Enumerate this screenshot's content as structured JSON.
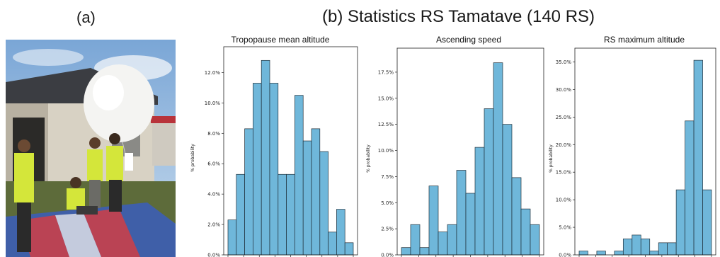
{
  "panels": {
    "a_label": "(a)",
    "b_label": "(b) Statistics RS Tamatave (140 RS)"
  },
  "photo": {
    "description_icon": "radiosonde-launch-photo-icon"
  },
  "colors": {
    "bar_fill": "#6fb7da",
    "bar_stroke": "#1f2f3a",
    "sky": "#8fb4d8",
    "tarp_red": "#c8404a",
    "tarp_blue": "#3f5fa8",
    "vest": "#d4e63a"
  },
  "chart_data": [
    {
      "type": "bar",
      "title": "Tropopause mean altitude",
      "ylabel": "% probability",
      "ylim": [
        0,
        13.7
      ],
      "yticks": [
        0,
        2,
        4,
        6,
        8,
        10,
        12
      ],
      "ytick_labels": [
        "0.0%",
        "2.0%",
        "4.0%",
        "6.0%",
        "8.0%",
        "10.0%",
        "12.0%"
      ],
      "values": [
        2.3,
        5.3,
        8.3,
        11.3,
        12.8,
        11.3,
        5.3,
        5.3,
        10.5,
        7.5,
        8.3,
        6.8,
        1.5,
        3.0,
        0.8
      ],
      "grid": false,
      "legend": "none"
    },
    {
      "type": "bar",
      "title": "Ascending speed",
      "ylabel": "% probability",
      "ylim": [
        0,
        19.8
      ],
      "yticks": [
        0,
        2.5,
        5,
        7.5,
        10,
        12.5,
        15,
        17.5
      ],
      "ytick_labels": [
        "0.0%",
        "2.5%",
        "5.0%",
        "7.5%",
        "10.0%",
        "12.5%",
        "15.0%",
        "17.5%"
      ],
      "values": [
        0.7,
        2.9,
        0.7,
        6.6,
        2.2,
        2.9,
        8.1,
        5.9,
        10.3,
        14.0,
        18.4,
        12.5,
        7.4,
        4.4,
        2.9
      ],
      "grid": false,
      "legend": "none"
    },
    {
      "type": "bar",
      "title": "RS maximum altitude",
      "ylabel": "% probability",
      "ylim": [
        0,
        37.5
      ],
      "yticks": [
        0,
        5,
        10,
        15,
        20,
        25,
        30,
        35
      ],
      "ytick_labels": [
        "0.0%",
        "5.0%",
        "10.0%",
        "15.0%",
        "20.0%",
        "25.0%",
        "30.0%",
        "35.0%"
      ],
      "values": [
        0.7,
        0,
        0.7,
        0,
        0.7,
        2.9,
        3.6,
        2.9,
        0.7,
        2.2,
        2.2,
        11.8,
        24.3,
        35.3,
        11.8
      ],
      "grid": false,
      "legend": "none"
    }
  ]
}
